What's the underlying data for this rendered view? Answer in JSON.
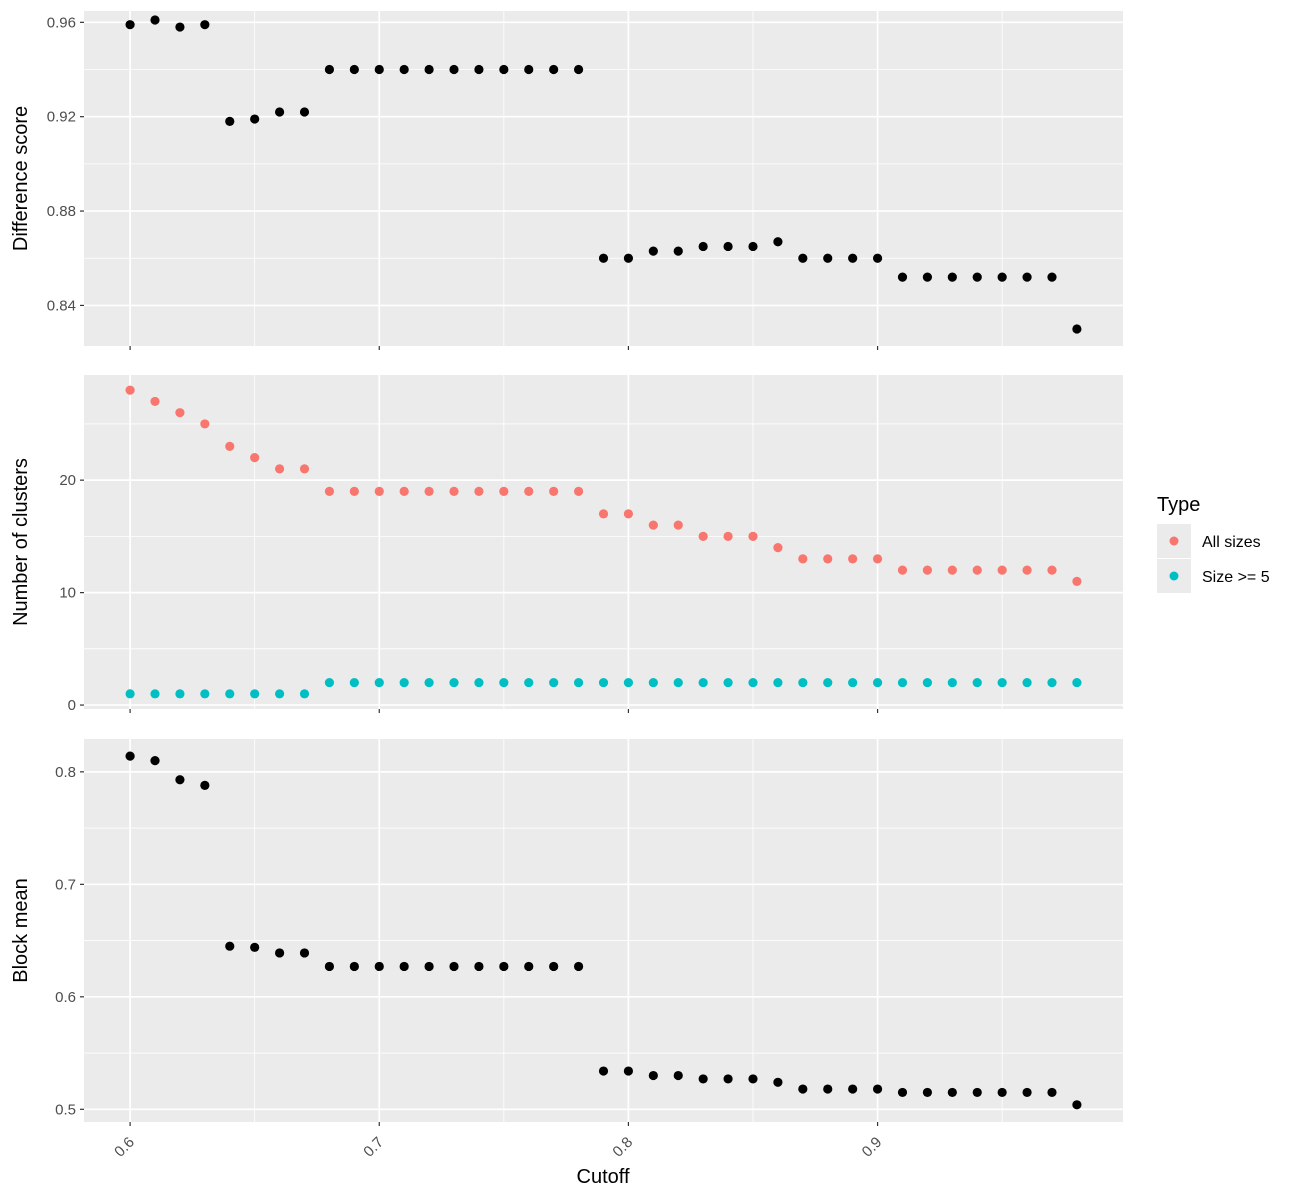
{
  "chart_data": {
    "type": "scatter",
    "xlabel": "Cutoff",
    "x_ticks": [
      "0.6",
      "0.7",
      "0.8",
      "0.9"
    ],
    "x_tick_values": [
      0.6,
      0.7,
      0.8,
      0.9
    ],
    "xlim": [
      0.5815,
      0.9985
    ],
    "x": [
      0.6,
      0.61,
      0.62,
      0.63,
      0.64,
      0.65,
      0.66,
      0.67,
      0.68,
      0.69,
      0.7,
      0.71,
      0.72,
      0.73,
      0.74,
      0.75,
      0.76,
      0.77,
      0.78,
      0.79,
      0.8,
      0.81,
      0.82,
      0.83,
      0.84,
      0.85,
      0.86,
      0.87,
      0.88,
      0.89,
      0.9,
      0.91,
      0.92,
      0.93,
      0.94,
      0.95,
      0.96,
      0.97,
      0.98
    ],
    "panels": [
      {
        "ylabel": "Difference score",
        "ylim": [
          0.8228,
          0.9648
        ],
        "y_ticks": [
          "0.84",
          "0.88",
          "0.92",
          "0.96"
        ],
        "y_tick_values": [
          0.84,
          0.88,
          0.92,
          0.96
        ],
        "series": [
          {
            "color": "#000000",
            "values": [
              0.959,
              0.961,
              0.958,
              0.959,
              0.918,
              0.919,
              0.922,
              0.922,
              0.94,
              0.94,
              0.94,
              0.94,
              0.94,
              0.94,
              0.94,
              0.94,
              0.94,
              0.94,
              0.94,
              0.86,
              0.86,
              0.863,
              0.863,
              0.865,
              0.865,
              0.865,
              0.867,
              0.86,
              0.86,
              0.86,
              0.86,
              0.852,
              0.852,
              0.852,
              0.852,
              0.852,
              0.852,
              0.852,
              0.83
            ]
          }
        ]
      },
      {
        "ylabel": "Number of clusters",
        "ylim": [
          -0.35,
          29.35
        ],
        "y_ticks": [
          "0",
          "10",
          "20"
        ],
        "y_tick_values": [
          0,
          10,
          20
        ],
        "series": [
          {
            "color": "#F8766D",
            "values": [
              28,
              27,
              26,
              25,
              23,
              22,
              21,
              21,
              19,
              19,
              19,
              19,
              19,
              19,
              19,
              19,
              19,
              19,
              19,
              17,
              17,
              16,
              16,
              15,
              15,
              15,
              14,
              13,
              13,
              13,
              13,
              12,
              12,
              12,
              12,
              12,
              12,
              12,
              11
            ]
          },
          {
            "color": "#00BFC4",
            "values": [
              1,
              1,
              1,
              1,
              1,
              1,
              1,
              1,
              2,
              2,
              2,
              2,
              2,
              2,
              2,
              2,
              2,
              2,
              2,
              2,
              2,
              2,
              2,
              2,
              2,
              2,
              2,
              2,
              2,
              2,
              2,
              2,
              2,
              2,
              2,
              2,
              2,
              2,
              2
            ]
          }
        ]
      },
      {
        "ylabel": "Block mean",
        "ylim": [
          0.4887,
          0.8292
        ],
        "y_ticks": [
          "0.5",
          "0.6",
          "0.7",
          "0.8"
        ],
        "y_tick_values": [
          0.5,
          0.6,
          0.7,
          0.8
        ],
        "series": [
          {
            "color": "#000000",
            "values": [
              0.814,
              0.81,
              0.793,
              0.788,
              0.645,
              0.644,
              0.639,
              0.639,
              0.627,
              0.627,
              0.627,
              0.627,
              0.627,
              0.627,
              0.627,
              0.627,
              0.627,
              0.627,
              0.627,
              0.534,
              0.534,
              0.53,
              0.53,
              0.527,
              0.527,
              0.527,
              0.524,
              0.518,
              0.518,
              0.518,
              0.518,
              0.515,
              0.515,
              0.515,
              0.515,
              0.515,
              0.515,
              0.515,
              0.504
            ]
          }
        ]
      }
    ],
    "legend": {
      "title": "Type",
      "position": "right",
      "entries": [
        {
          "label": "All sizes",
          "color": "#F8766D"
        },
        {
          "label": "Size >= 5",
          "color": "#00BFC4"
        }
      ]
    },
    "grid": true,
    "panel_background": "#EBEBEB",
    "grid_color": "#FFFFFF"
  }
}
